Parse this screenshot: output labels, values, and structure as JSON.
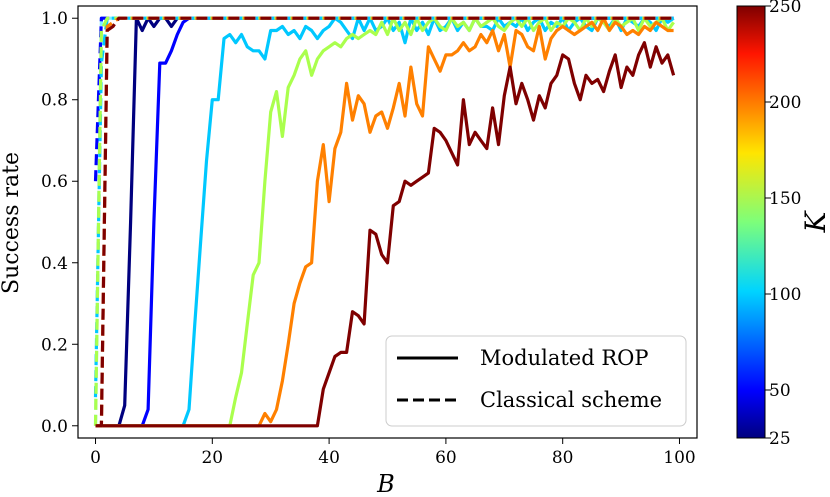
{
  "chart_data": {
    "type": "line",
    "xlabel": "B",
    "ylabel": "Success rate",
    "xlim": [
      -3,
      103
    ],
    "ylim": [
      -0.03,
      1.03
    ],
    "xticks": [
      "0",
      "20",
      "40",
      "60",
      "80",
      "100"
    ],
    "yticks": [
      "0.0",
      "0.2",
      "0.4",
      "0.6",
      "0.8",
      "1.0"
    ],
    "colorbar": {
      "label": "K",
      "vmin": 25,
      "vmax": 250,
      "ticks": [
        "25",
        "50",
        "100",
        "150",
        "200",
        "250"
      ],
      "colormap": "jet"
    },
    "legend": {
      "position": "bottom-right",
      "entries": [
        {
          "label": "Modulated ROP",
          "style": "solid"
        },
        {
          "label": "Classical scheme",
          "style": "dashed"
        }
      ]
    },
    "series": [
      {
        "K": 25,
        "style": "solid",
        "color": "#00007f",
        "x": [
          0,
          1,
          2,
          3,
          4,
          5,
          6,
          7,
          8,
          9,
          10,
          11,
          12,
          13,
          14,
          15,
          16,
          99
        ],
        "y": [
          0,
          0,
          0,
          0,
          0,
          0.05,
          0.5,
          1,
          0.97,
          1,
          0.98,
          1,
          1,
          0.98,
          1,
          1,
          1,
          1
        ]
      },
      {
        "K": 50,
        "style": "solid",
        "color": "#0000ff",
        "x": [
          0,
          6,
          7,
          8,
          9,
          10,
          11,
          12,
          13,
          14,
          15,
          16,
          17,
          18,
          19,
          20,
          99
        ],
        "y": [
          0,
          0,
          0,
          0,
          0.04,
          0.5,
          0.89,
          0.89,
          0.92,
          0.96,
          0.99,
          1,
          1,
          1,
          1,
          1,
          1
        ]
      },
      {
        "K": 100,
        "style": "solid",
        "color": "#00c8ff",
        "x": [
          0,
          15,
          16,
          17,
          18,
          19,
          20,
          21,
          22,
          23,
          24,
          25,
          26,
          27,
          28,
          29,
          30,
          31,
          32,
          33,
          34,
          35,
          36,
          37,
          38,
          39,
          40,
          41,
          42,
          43,
          44,
          45,
          46,
          47,
          48,
          49,
          50,
          51,
          52,
          53,
          54,
          55,
          56,
          57,
          58,
          59,
          60,
          61,
          62,
          63,
          64,
          65,
          66,
          67,
          68,
          69,
          70,
          71,
          72,
          73,
          74,
          75,
          76,
          77,
          78,
          79,
          80,
          81,
          82,
          83,
          84,
          85,
          86,
          87,
          88,
          89,
          90,
          91,
          92,
          93,
          94,
          95,
          96,
          97,
          98,
          99
        ],
        "y": [
          0,
          0,
          0.04,
          0.25,
          0.45,
          0.65,
          0.8,
          0.8,
          0.95,
          0.96,
          0.94,
          0.96,
          0.93,
          0.92,
          0.92,
          0.9,
          0.97,
          0.97,
          0.98,
          0.96,
          0.97,
          0.95,
          0.98,
          0.97,
          0.95,
          0.97,
          0.98,
          1,
          0.99,
          0.97,
          0.95,
          1,
          0.97,
          1,
          0.97,
          0.98,
          1,
          0.97,
          0.99,
          0.94,
          1,
          0.97,
          0.99,
          0.96,
          1,
          0.97,
          0.98,
          1,
          0.97,
          0.99,
          0.97,
          1,
          0.98,
          0.98,
          0.97,
          1,
          0.98,
          0.99,
          0.98,
          1,
          0.97,
          0.99,
          1,
          0.97,
          0.99,
          0.98,
          1,
          0.97,
          0.99,
          1,
          0.98,
          0.97,
          1,
          0.99,
          0.98,
          1,
          0.97,
          1,
          0.99,
          0.98,
          1,
          0.99,
          0.97,
          1,
          0.99,
          1
        ]
      },
      {
        "K": 150,
        "style": "solid",
        "color": "#aaff4d",
        "x": [
          0,
          23,
          24,
          25,
          26,
          27,
          28,
          29,
          30,
          31,
          32,
          33,
          34,
          35,
          36,
          37,
          38,
          39,
          40,
          41,
          42,
          43,
          44,
          45,
          46,
          47,
          48,
          49,
          50,
          51,
          52,
          53,
          54,
          55,
          56,
          57,
          58,
          59,
          60,
          61,
          62,
          63,
          64,
          65,
          66,
          67,
          68,
          69,
          70,
          71,
          72,
          73,
          74,
          75,
          76,
          77,
          78,
          79,
          80,
          81,
          82,
          83,
          84,
          85,
          86,
          87,
          88,
          89,
          90,
          91,
          92,
          93,
          94,
          95,
          96,
          97,
          98,
          99
        ],
        "y": [
          0,
          0,
          0.07,
          0.13,
          0.25,
          0.37,
          0.4,
          0.6,
          0.77,
          0.82,
          0.71,
          0.83,
          0.86,
          0.9,
          0.92,
          0.86,
          0.9,
          0.92,
          0.93,
          0.94,
          0.93,
          0.95,
          0.96,
          0.95,
          0.96,
          0.97,
          0.96,
          0.99,
          0.96,
          1,
          0.97,
          0.99,
          0.96,
          1,
          0.97,
          0.99,
          1,
          0.98,
          0.97,
          1,
          0.98,
          0.99,
          0.97,
          1,
          0.98,
          0.99,
          1,
          0.98,
          0.97,
          0.99,
          1,
          0.98,
          1,
          0.97,
          0.99,
          1,
          0.97,
          0.99,
          0.98,
          1,
          0.99,
          0.97,
          1,
          0.98,
          1,
          0.99,
          0.97,
          1,
          0.98,
          0.99,
          1,
          0.97,
          1,
          0.98,
          0.99,
          1,
          0.97,
          0.99
        ]
      },
      {
        "K": 200,
        "style": "solid",
        "color": "#ff8000",
        "x": [
          0,
          28,
          29,
          30,
          31,
          32,
          33,
          34,
          35,
          36,
          37,
          38,
          39,
          40,
          41,
          42,
          43,
          44,
          45,
          46,
          47,
          48,
          49,
          50,
          51,
          52,
          53,
          54,
          55,
          56,
          57,
          58,
          59,
          60,
          61,
          62,
          63,
          64,
          65,
          66,
          67,
          68,
          69,
          70,
          71,
          72,
          73,
          74,
          75,
          76,
          77,
          78,
          79,
          80,
          81,
          82,
          83,
          84,
          85,
          86,
          87,
          88,
          89,
          90,
          91,
          92,
          93,
          94,
          95,
          96,
          97,
          98,
          99
        ],
        "y": [
          0,
          0,
          0.03,
          0.01,
          0.04,
          0.11,
          0.2,
          0.3,
          0.35,
          0.39,
          0.4,
          0.6,
          0.69,
          0.55,
          0.68,
          0.72,
          0.84,
          0.75,
          0.81,
          0.79,
          0.72,
          0.76,
          0.77,
          0.73,
          0.78,
          0.84,
          0.76,
          0.88,
          0.79,
          0.76,
          0.93,
          0.9,
          0.87,
          0.91,
          0.91,
          0.92,
          0.94,
          0.92,
          0.93,
          0.96,
          0.94,
          0.97,
          0.92,
          0.96,
          0.88,
          0.97,
          0.96,
          0.93,
          0.92,
          0.98,
          0.9,
          0.95,
          0.97,
          0.98,
          0.97,
          0.96,
          0.97,
          0.98,
          0.99,
          0.97,
          1,
          0.97,
          0.99,
          0.98,
          0.96,
          0.97,
          0.96,
          0.98,
          0.97,
          0.99,
          0.98,
          0.97,
          0.97
        ]
      },
      {
        "K": 250,
        "style": "solid",
        "color": "#7f0000",
        "x": [
          0,
          38,
          39,
          40,
          41,
          42,
          43,
          44,
          45,
          46,
          47,
          48,
          49,
          50,
          51,
          52,
          53,
          54,
          55,
          56,
          57,
          58,
          59,
          60,
          61,
          62,
          63,
          64,
          65,
          66,
          67,
          68,
          69,
          70,
          71,
          72,
          73,
          74,
          75,
          76,
          77,
          78,
          79,
          80,
          81,
          82,
          83,
          84,
          85,
          86,
          87,
          88,
          89,
          90,
          91,
          92,
          93,
          94,
          95,
          96,
          97,
          98,
          99
        ],
        "y": [
          0,
          0,
          0.09,
          0.13,
          0.17,
          0.18,
          0.18,
          0.28,
          0.27,
          0.25,
          0.48,
          0.47,
          0.42,
          0.4,
          0.54,
          0.55,
          0.6,
          0.59,
          0.6,
          0.61,
          0.62,
          0.73,
          0.72,
          0.7,
          0.67,
          0.64,
          0.8,
          0.69,
          0.72,
          0.7,
          0.68,
          0.78,
          0.69,
          0.81,
          0.88,
          0.79,
          0.84,
          0.8,
          0.75,
          0.81,
          0.78,
          0.84,
          0.86,
          0.91,
          0.9,
          0.84,
          0.8,
          0.86,
          0.84,
          0.85,
          0.82,
          0.87,
          0.91,
          0.83,
          0.88,
          0.86,
          0.91,
          0.94,
          0.88,
          0.93,
          0.89,
          0.91,
          0.86
        ]
      },
      {
        "K": 25,
        "style": "dashed",
        "color": "#7ff0ff",
        "x": [
          0,
          1,
          2,
          3,
          99
        ],
        "y": [
          0,
          1,
          1,
          1,
          1
        ]
      },
      {
        "K": 50,
        "style": "dashed",
        "color": "#0000ff",
        "x": [
          0,
          1,
          2,
          99
        ],
        "y": [
          0.6,
          1,
          1,
          1
        ]
      },
      {
        "K": 100,
        "style": "dashed",
        "color": "#00c8ff",
        "x": [
          0,
          1,
          2,
          3,
          99
        ],
        "y": [
          0.07,
          0.89,
          1,
          1,
          1
        ]
      },
      {
        "K": 150,
        "style": "dashed",
        "color": "#aaff4d",
        "x": [
          0,
          1,
          2,
          3,
          99
        ],
        "y": [
          0,
          0.97,
          1,
          1,
          1
        ]
      },
      {
        "K": 200,
        "style": "dashed",
        "color": "#ff8000",
        "x": [
          0,
          1,
          2,
          3,
          4,
          5,
          99
        ],
        "y": [
          0,
          0,
          0.98,
          0.99,
          1,
          1,
          1
        ]
      },
      {
        "K": 250,
        "style": "dashed",
        "color": "#7f0000",
        "x": [
          0,
          1,
          2,
          3,
          4,
          5,
          99
        ],
        "y": [
          0,
          0,
          0.97,
          0.98,
          1,
          1,
          1
        ]
      }
    ]
  }
}
